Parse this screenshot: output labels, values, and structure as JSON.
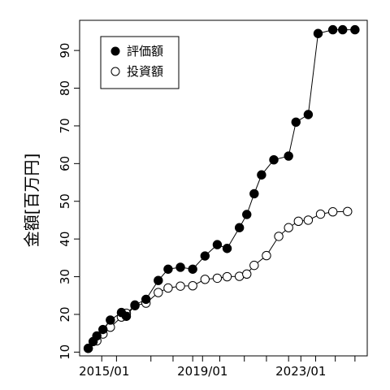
{
  "chart_data": {
    "type": "line",
    "xlabel": "",
    "ylabel": "金額[百万円]",
    "xlim": [
      2014.0,
      2025.7
    ],
    "ylim": [
      9,
      98
    ],
    "x_ticks": [
      2014.9,
      2015.5,
      2016.9,
      2017.8,
      2018.6,
      2019.0,
      2019.7,
      2020.7,
      2021.6,
      2022.5,
      2023.0,
      2023.6,
      2024.4,
      2025.2
    ],
    "x_tick_labels": [
      {
        "x": 2015.0,
        "label": "2015/01"
      },
      {
        "x": 2019.0,
        "label": "2019/01"
      },
      {
        "x": 2023.0,
        "label": "2023/01"
      }
    ],
    "y_ticks": [
      10,
      20,
      30,
      40,
      50,
      60,
      70,
      80,
      90
    ],
    "legend_position": "top-left",
    "series": [
      {
        "name": "評価額",
        "marker": "filled-circle",
        "color": "#000000",
        "x": [
          2014.35,
          2014.55,
          2014.7,
          2014.95,
          2015.25,
          2015.7,
          2015.9,
          2016.25,
          2016.7,
          2017.2,
          2017.6,
          2018.1,
          2018.6,
          2019.1,
          2019.6,
          2020.0,
          2020.5,
          2020.8,
          2021.1,
          2021.4,
          2021.9,
          2022.5,
          2022.8,
          2023.3,
          2023.7,
          2024.3,
          2024.7,
          2025.2
        ],
        "y": [
          11.0,
          12.8,
          14.3,
          16.0,
          18.5,
          20.5,
          19.5,
          22.5,
          24.0,
          29.0,
          32.0,
          32.5,
          32.0,
          35.5,
          38.5,
          37.5,
          43.0,
          46.5,
          52.0,
          57.0,
          61.0,
          62.0,
          71.0,
          73.0,
          94.5,
          95.5,
          95.5,
          95.5
        ]
      },
      {
        "name": "投資額",
        "marker": "open-circle",
        "color": "#000000",
        "x": [
          2014.35,
          2014.7,
          2014.95,
          2015.25,
          2015.7,
          2015.9,
          2016.25,
          2016.7,
          2017.2,
          2017.6,
          2018.1,
          2018.6,
          2019.1,
          2019.6,
          2020.0,
          2020.5,
          2020.8,
          2021.1,
          2021.6,
          2022.1,
          2022.5,
          2022.9,
          2023.3,
          2023.8,
          2024.3,
          2024.9
        ],
        "y": [
          11.0,
          13.0,
          14.8,
          16.6,
          19.3,
          20.3,
          22.3,
          23.0,
          25.8,
          27.0,
          27.5,
          27.6,
          29.3,
          29.6,
          30.0,
          30.1,
          30.7,
          33.0,
          35.6,
          40.7,
          43.0,
          44.7,
          45.0,
          46.6,
          47.2,
          47.3
        ]
      }
    ]
  }
}
